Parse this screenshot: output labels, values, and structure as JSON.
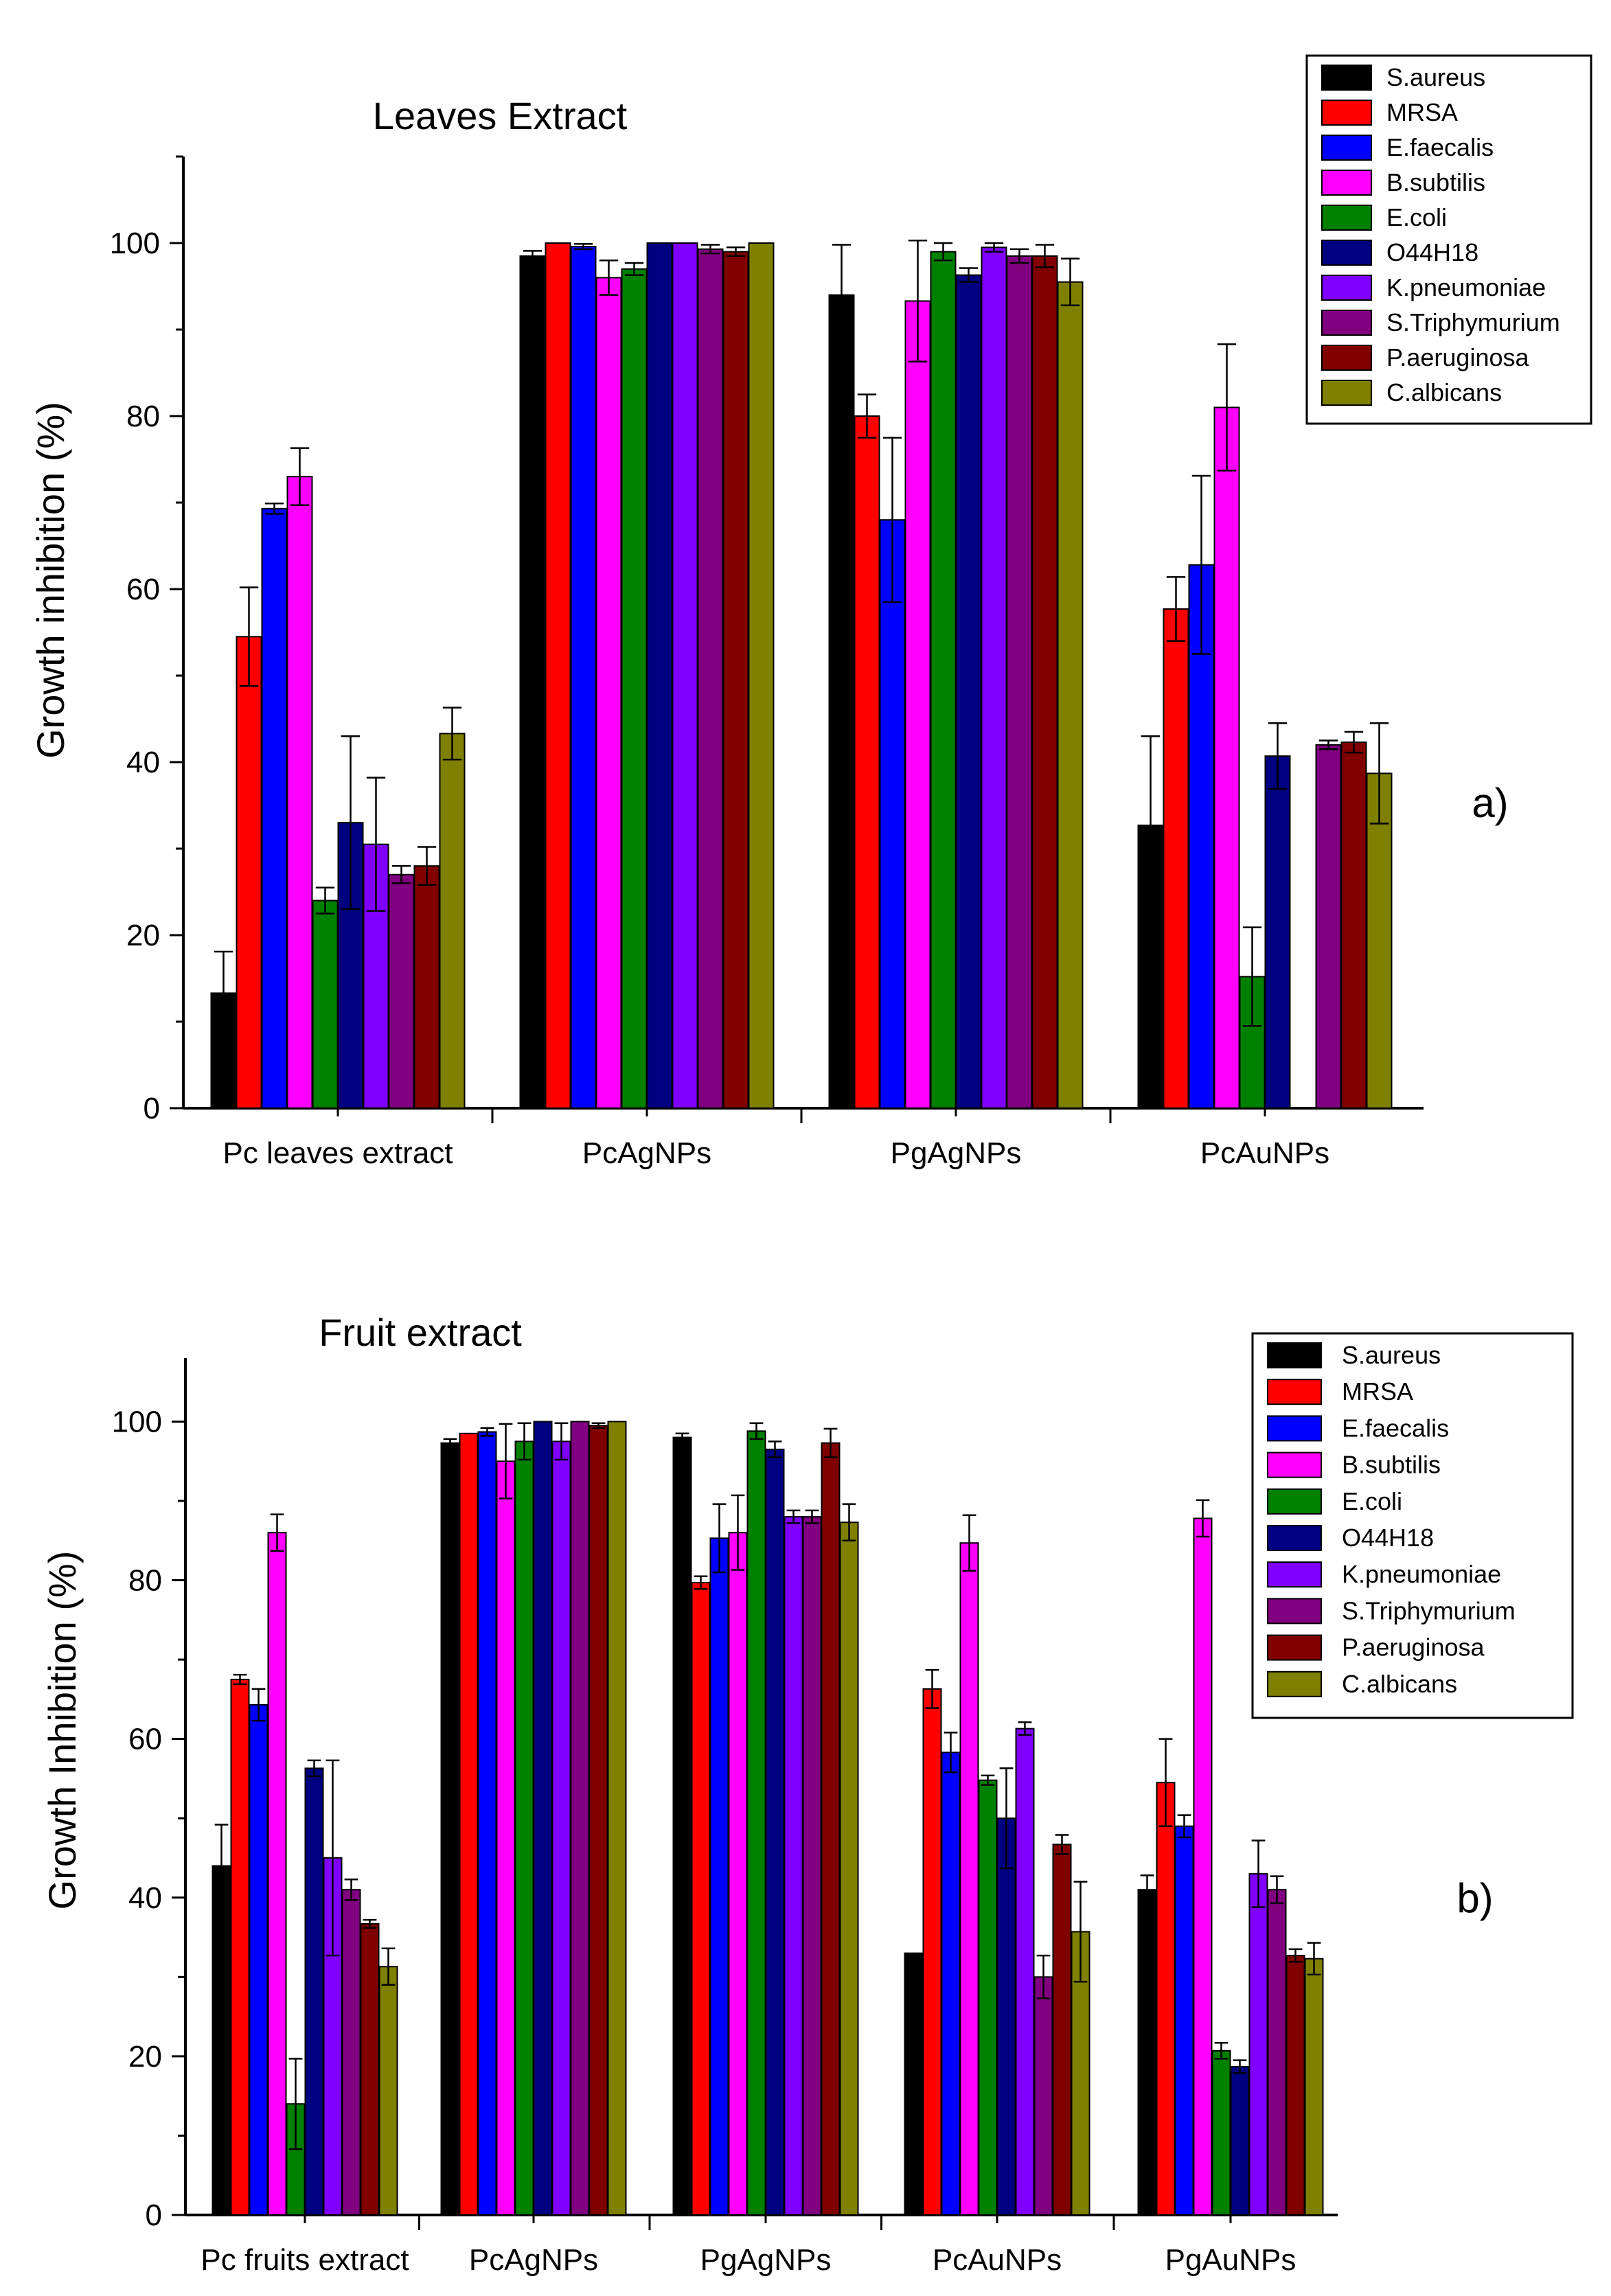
{
  "chart_data": [
    {
      "type": "bar",
      "title": "Leaves Extract",
      "panel_label": "a)",
      "xlabel": "",
      "ylabel": "Growth inhibition (%)",
      "ylim": [
        0,
        110
      ],
      "yticks": [
        0,
        20,
        40,
        60,
        80,
        100
      ],
      "grid": false,
      "legend_position": "top-right",
      "categories": [
        "Pc leaves extract",
        "PcAgNPs",
        "PgAgNPs",
        "PcAuNPs"
      ],
      "series": [
        {
          "name": "S.aureus",
          "color": "#000000",
          "values": [
            13.3,
            98.5,
            94.0,
            32.7
          ],
          "errors": [
            4.8,
            0.6,
            5.8,
            10.3
          ]
        },
        {
          "name": "MRSA",
          "color": "#ff0000",
          "values": [
            54.5,
            100.0,
            80.0,
            57.7
          ],
          "errors": [
            5.7,
            0.0,
            2.5,
            3.7
          ]
        },
        {
          "name": "E.faecalis",
          "color": "#0000ff",
          "values": [
            69.3,
            99.6,
            68.0,
            62.8
          ],
          "errors": [
            0.6,
            0.3,
            9.5,
            10.3
          ]
        },
        {
          "name": "B.subtilis",
          "color": "#ff00ff",
          "values": [
            73.0,
            96.0,
            93.3,
            81.0
          ],
          "errors": [
            3.3,
            2.0,
            7.0,
            7.3
          ]
        },
        {
          "name": "E.coli",
          "color": "#008000",
          "values": [
            24.0,
            97.0,
            99.0,
            15.2
          ],
          "errors": [
            1.5,
            0.7,
            1.0,
            5.7
          ]
        },
        {
          "name": "O44H18",
          "color": "#000080",
          "values": [
            33.0,
            100.0,
            96.3,
            40.7
          ],
          "errors": [
            10.0,
            0.0,
            0.8,
            3.8
          ]
        },
        {
          "name": "K.pneumoniae",
          "color": "#8000ff",
          "values": [
            30.5,
            100.0,
            99.5,
            null
          ],
          "errors": [
            7.7,
            0.0,
            0.5,
            null
          ]
        },
        {
          "name": "S.Triphymurium",
          "color": "#800080",
          "values": [
            27.0,
            99.3,
            98.5,
            42.0
          ],
          "errors": [
            1.0,
            0.5,
            0.8,
            0.5
          ]
        },
        {
          "name": "P.aeruginosa",
          "color": "#800000",
          "values": [
            28.0,
            99.0,
            98.5,
            42.3
          ],
          "errors": [
            2.2,
            0.5,
            1.3,
            1.2
          ]
        },
        {
          "name": "C.albicans",
          "color": "#808000",
          "values": [
            43.3,
            100.0,
            95.5,
            38.7
          ],
          "errors": [
            3.0,
            0.0,
            2.7,
            5.8
          ]
        }
      ]
    },
    {
      "type": "bar",
      "title": "Fruit extract",
      "panel_label": "b)",
      "xlabel": "",
      "ylabel": "Growth Inhibition (%)",
      "ylim": [
        0,
        108
      ],
      "yticks": [
        0,
        20,
        40,
        60,
        80,
        100
      ],
      "grid": false,
      "legend_position": "top-right",
      "categories": [
        "Pc fruits extract",
        "PcAgNPs",
        "PgAgNPs",
        "PcAuNPs",
        "PgAuNPs"
      ],
      "series": [
        {
          "name": "S.aureus",
          "color": "#000000",
          "values": [
            44.0,
            97.3,
            98.0,
            33.0,
            41.0
          ],
          "errors": [
            5.2,
            0.5,
            0.5,
            0.0,
            1.8
          ]
        },
        {
          "name": "MRSA",
          "color": "#ff0000",
          "values": [
            67.5,
            98.5,
            79.7,
            66.3,
            54.5
          ],
          "errors": [
            0.6,
            0.0,
            0.8,
            2.4,
            5.5
          ]
        },
        {
          "name": "E.faecalis",
          "color": "#0000ff",
          "values": [
            64.3,
            98.7,
            85.3,
            58.3,
            49.0
          ],
          "errors": [
            2.0,
            0.5,
            4.3,
            2.5,
            1.4
          ]
        },
        {
          "name": "B.subtilis",
          "color": "#ff00ff",
          "values": [
            86.0,
            95.0,
            86.0,
            84.7,
            87.8
          ],
          "errors": [
            2.3,
            4.7,
            4.7,
            3.5,
            2.3
          ]
        },
        {
          "name": "E.coli",
          "color": "#008000",
          "values": [
            14.0,
            97.5,
            98.8,
            54.8,
            20.7
          ],
          "errors": [
            5.7,
            2.3,
            1.0,
            0.6,
            1.0
          ]
        },
        {
          "name": "O44H18",
          "color": "#000080",
          "values": [
            56.3,
            100.0,
            96.5,
            50.0,
            18.7
          ],
          "errors": [
            1.0,
            0.0,
            1.0,
            6.3,
            0.8
          ]
        },
        {
          "name": "K.pneumoniae",
          "color": "#8000ff",
          "values": [
            45.0,
            97.5,
            88.0,
            61.3,
            43.0
          ],
          "errors": [
            12.3,
            2.3,
            0.8,
            0.8,
            4.2
          ]
        },
        {
          "name": "S.Triphymurium",
          "color": "#800080",
          "values": [
            41.0,
            100.0,
            88.0,
            30.0,
            41.0
          ],
          "errors": [
            1.3,
            0.0,
            0.8,
            2.7,
            1.7
          ]
        },
        {
          "name": "P.aeruginosa",
          "color": "#800000",
          "values": [
            36.7,
            99.5,
            97.3,
            46.7,
            32.7
          ],
          "errors": [
            0.5,
            0.3,
            1.8,
            1.2,
            0.8
          ]
        },
        {
          "name": "C.albicans",
          "color": "#808000",
          "values": [
            31.3,
            100.0,
            87.3,
            35.7,
            32.3
          ],
          "errors": [
            2.3,
            0.0,
            2.3,
            6.3,
            2.0
          ]
        }
      ]
    }
  ]
}
